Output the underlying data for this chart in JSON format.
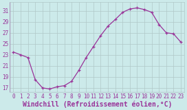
{
  "x": [
    0,
    1,
    2,
    3,
    4,
    5,
    6,
    7,
    8,
    9,
    10,
    11,
    12,
    13,
    14,
    15,
    16,
    17,
    18,
    19,
    20,
    21,
    22,
    23
  ],
  "y": [
    23.5,
    23.0,
    22.5,
    18.5,
    17.0,
    16.8,
    17.2,
    17.4,
    18.2,
    20.2,
    22.5,
    24.5,
    26.5,
    28.2,
    29.4,
    30.7,
    31.3,
    31.5,
    31.2,
    30.7,
    28.5,
    27.0,
    26.8,
    25.3
  ],
  "line_color": "#993399",
  "marker": "+",
  "bg_color": "#cceaea",
  "grid_color": "#b0c8c8",
  "xlabel": "Windchill (Refroidissement éolien,°C)",
  "ylabel_ticks": [
    17,
    19,
    21,
    23,
    25,
    27,
    29,
    31
  ],
  "xtick_labels": [
    "0",
    "1",
    "2",
    "3",
    "4",
    "5",
    "6",
    "7",
    "8",
    "9",
    "10",
    "11",
    "12",
    "13",
    "14",
    "15",
    "16",
    "17",
    "18",
    "19",
    "20",
    "21",
    "22",
    "23"
  ],
  "ylim": [
    16.2,
    32.5
  ],
  "xlim": [
    -0.5,
    23.5
  ],
  "tick_fontsize": 5.5,
  "xlabel_fontsize": 7.0,
  "linewidth": 0.9,
  "markersize": 3.5,
  "markeredgewidth": 0.9
}
